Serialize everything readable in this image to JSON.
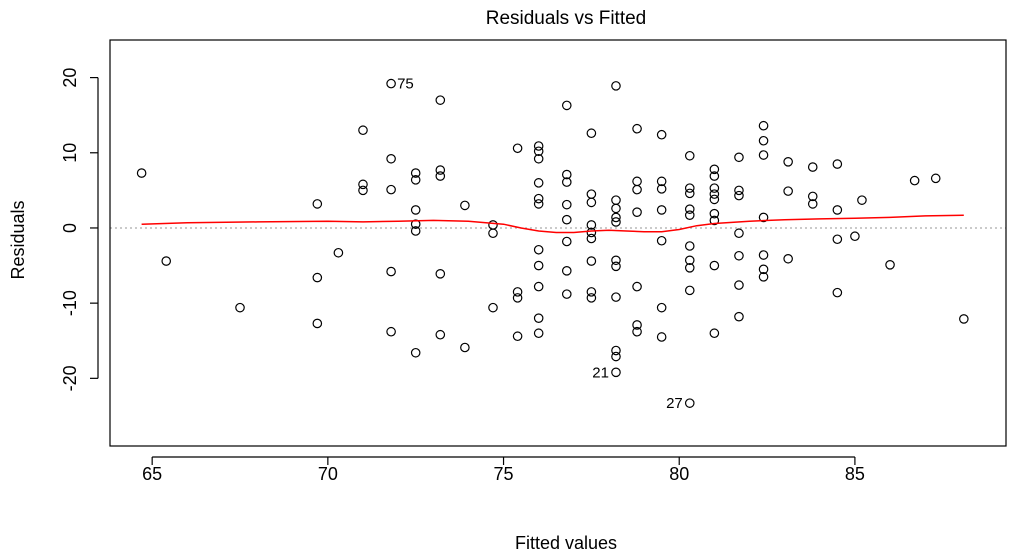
{
  "chart_data": {
    "type": "scatter",
    "title": "Residuals vs Fitted",
    "xlabel": "Fitted values",
    "ylabel": "Residuals",
    "xlim": [
      63.8,
      89.3
    ],
    "ylim": [
      -29,
      25
    ],
    "xticks": [
      65,
      70,
      75,
      80,
      85
    ],
    "yticks": [
      -20,
      -10,
      0,
      10,
      20
    ],
    "reference_line_y": 0,
    "points": [
      [
        64.7,
        7.3
      ],
      [
        65.4,
        -4.4
      ],
      [
        67.5,
        -10.6
      ],
      [
        69.7,
        3.2
      ],
      [
        69.7,
        -6.6
      ],
      [
        69.7,
        -12.7
      ],
      [
        70.3,
        -3.3
      ],
      [
        71.0,
        13.0
      ],
      [
        71.0,
        5.8
      ],
      [
        71.0,
        5.0
      ],
      [
        71.8,
        19.2
      ],
      [
        71.8,
        9.2
      ],
      [
        71.8,
        5.1
      ],
      [
        71.8,
        -5.8
      ],
      [
        71.8,
        -13.8
      ],
      [
        72.5,
        7.3
      ],
      [
        72.5,
        6.4
      ],
      [
        72.5,
        2.4
      ],
      [
        72.5,
        0.5
      ],
      [
        72.5,
        -0.4
      ],
      [
        72.5,
        -16.6
      ],
      [
        73.2,
        17.0
      ],
      [
        73.2,
        7.7
      ],
      [
        73.2,
        6.9
      ],
      [
        73.2,
        -6.1
      ],
      [
        73.2,
        -14.2
      ],
      [
        73.9,
        3.0
      ],
      [
        73.9,
        -15.9
      ],
      [
        74.7,
        0.4
      ],
      [
        74.7,
        -0.7
      ],
      [
        74.7,
        -10.6
      ],
      [
        75.4,
        10.6
      ],
      [
        75.4,
        -8.5
      ],
      [
        75.4,
        -9.3
      ],
      [
        75.4,
        -14.4
      ],
      [
        76.0,
        10.9
      ],
      [
        76.0,
        10.2
      ],
      [
        76.0,
        9.2
      ],
      [
        76.0,
        6.0
      ],
      [
        76.0,
        3.9
      ],
      [
        76.0,
        3.2
      ],
      [
        76.0,
        -2.9
      ],
      [
        76.0,
        -5.0
      ],
      [
        76.0,
        -7.8
      ],
      [
        76.0,
        -12.0
      ],
      [
        76.0,
        -14.0
      ],
      [
        76.8,
        16.3
      ],
      [
        76.8,
        7.1
      ],
      [
        76.8,
        6.1
      ],
      [
        76.8,
        3.1
      ],
      [
        76.8,
        1.1
      ],
      [
        76.8,
        -1.8
      ],
      [
        76.8,
        -5.7
      ],
      [
        76.8,
        -8.8
      ],
      [
        77.5,
        12.6
      ],
      [
        77.5,
        4.5
      ],
      [
        77.5,
        3.4
      ],
      [
        77.5,
        0.4
      ],
      [
        77.5,
        -0.6
      ],
      [
        77.5,
        -1.4
      ],
      [
        77.5,
        -4.4
      ],
      [
        77.5,
        -8.5
      ],
      [
        77.5,
        -9.3
      ],
      [
        78.2,
        18.9
      ],
      [
        78.2,
        3.7
      ],
      [
        78.2,
        2.6
      ],
      [
        78.2,
        1.4
      ],
      [
        78.2,
        0.8
      ],
      [
        78.2,
        -4.3
      ],
      [
        78.2,
        -5.1
      ],
      [
        78.2,
        -9.2
      ],
      [
        78.2,
        -16.3
      ],
      [
        78.2,
        -17.1
      ],
      [
        78.2,
        -19.2
      ],
      [
        78.8,
        13.2
      ],
      [
        78.8,
        6.2
      ],
      [
        78.8,
        5.1
      ],
      [
        78.8,
        2.1
      ],
      [
        78.8,
        -7.8
      ],
      [
        78.8,
        -12.9
      ],
      [
        78.8,
        -13.8
      ],
      [
        79.5,
        12.4
      ],
      [
        79.5,
        6.2
      ],
      [
        79.5,
        5.2
      ],
      [
        79.5,
        2.4
      ],
      [
        79.5,
        -1.7
      ],
      [
        79.5,
        -10.6
      ],
      [
        79.5,
        -14.5
      ],
      [
        80.3,
        9.6
      ],
      [
        80.3,
        5.3
      ],
      [
        80.3,
        4.6
      ],
      [
        80.3,
        2.5
      ],
      [
        80.3,
        1.7
      ],
      [
        80.3,
        -2.4
      ],
      [
        80.3,
        -4.3
      ],
      [
        80.3,
        -5.3
      ],
      [
        80.3,
        -8.3
      ],
      [
        80.3,
        -23.3
      ],
      [
        81.0,
        7.8
      ],
      [
        81.0,
        6.9
      ],
      [
        81.0,
        5.3
      ],
      [
        81.0,
        4.5
      ],
      [
        81.0,
        3.8
      ],
      [
        81.0,
        1.9
      ],
      [
        81.0,
        1.0
      ],
      [
        81.0,
        -5.0
      ],
      [
        81.0,
        -14.0
      ],
      [
        81.7,
        9.4
      ],
      [
        81.7,
        5.0
      ],
      [
        81.7,
        4.3
      ],
      [
        81.7,
        -0.7
      ],
      [
        81.7,
        -3.7
      ],
      [
        81.7,
        -7.6
      ],
      [
        81.7,
        -11.8
      ],
      [
        82.4,
        13.6
      ],
      [
        82.4,
        11.6
      ],
      [
        82.4,
        9.7
      ],
      [
        82.4,
        1.4
      ],
      [
        82.4,
        -3.6
      ],
      [
        82.4,
        -5.5
      ],
      [
        82.4,
        -6.5
      ],
      [
        83.1,
        8.8
      ],
      [
        83.1,
        4.9
      ],
      [
        83.1,
        -4.1
      ],
      [
        83.8,
        8.1
      ],
      [
        83.8,
        4.2
      ],
      [
        83.8,
        3.2
      ],
      [
        84.5,
        8.5
      ],
      [
        84.5,
        2.4
      ],
      [
        84.5,
        -1.5
      ],
      [
        84.5,
        -8.6
      ],
      [
        85.2,
        3.7
      ],
      [
        85.0,
        -1.1
      ],
      [
        86.0,
        -4.9
      ],
      [
        86.7,
        6.3
      ],
      [
        87.3,
        6.6
      ],
      [
        88.1,
        -12.1
      ]
    ],
    "labeled_points": [
      {
        "label": "75",
        "x": 71.8,
        "y": 19.2,
        "side": "right"
      },
      {
        "label": "21",
        "x": 78.2,
        "y": -19.2,
        "side": "left"
      },
      {
        "label": "27",
        "x": 80.3,
        "y": -23.3,
        "side": "left"
      }
    ],
    "smooth_line": {
      "color": "#ff0000",
      "x": [
        64.7,
        66,
        68,
        70,
        71,
        72,
        73,
        74,
        75,
        75.5,
        76,
        76.5,
        77,
        77.5,
        78,
        78.5,
        79,
        79.5,
        80,
        80.5,
        81,
        82,
        83,
        84,
        85,
        86,
        87,
        88.1
      ],
      "y": [
        0.5,
        0.7,
        0.8,
        0.9,
        0.8,
        0.9,
        1.0,
        0.9,
        0.5,
        0.0,
        -0.4,
        -0.6,
        -0.6,
        -0.4,
        -0.3,
        -0.4,
        -0.5,
        -0.5,
        -0.2,
        0.3,
        0.6,
        0.9,
        1.1,
        1.2,
        1.3,
        1.4,
        1.6,
        1.7
      ]
    },
    "grid": false,
    "legend": "none"
  }
}
